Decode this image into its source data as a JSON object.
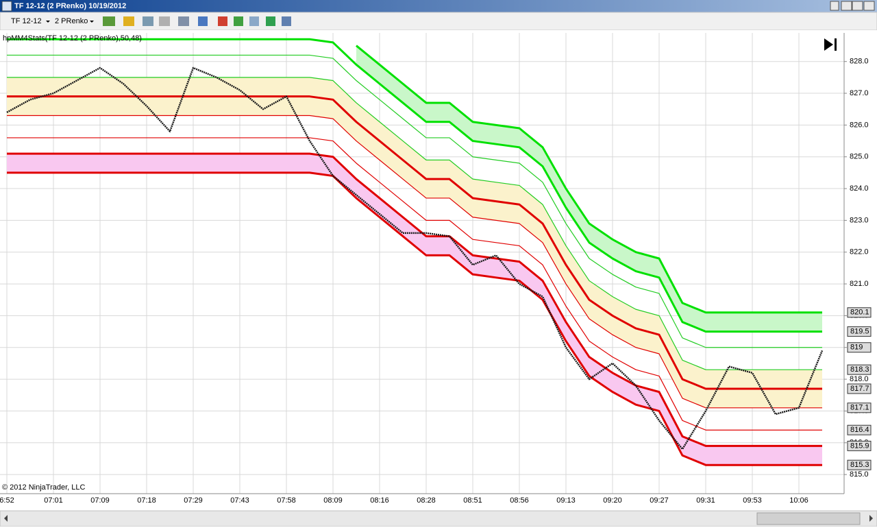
{
  "window": {
    "title": "TF 12-12 (2 PRenko)  10/19/2012"
  },
  "toolbar": {
    "instrument": "TF 12-12",
    "bar_type": "2 PRenko"
  },
  "chart_data": {
    "type": "line",
    "title": "hpMM4Stats(TF 12-12 (2 PRenko),50,48)",
    "annotation": "© 2012 NinjaTrader, LLC",
    "categories": [
      "6:52",
      null,
      "07:01",
      null,
      "07:09",
      null,
      "07:18",
      null,
      "07:29",
      null,
      "07:43",
      null,
      "07:58",
      null,
      "08:09",
      null,
      "08:16",
      null,
      "08:28",
      null,
      "08:51",
      null,
      "08:56",
      null,
      "09:13",
      null,
      "09:20",
      null,
      "09:27",
      null,
      "09:31",
      null,
      "09:53",
      null,
      "10:06",
      null
    ],
    "ylim": [
      814.7,
      828.9
    ],
    "yticks": [
      {
        "value": 815,
        "label": "815.0"
      },
      {
        "value": 816,
        "label": "816.0"
      },
      {
        "value": 817,
        "label": "817.0"
      },
      {
        "value": 818,
        "label": "818.0"
      },
      {
        "value": 819,
        "label": "819.0"
      },
      {
        "value": 820,
        "label": "820.0"
      },
      {
        "value": 821,
        "label": "821.0"
      },
      {
        "value": 822,
        "label": "822.0"
      },
      {
        "value": 823,
        "label": "823.0"
      },
      {
        "value": 824,
        "label": "824.0"
      },
      {
        "value": 825,
        "label": "825.0"
      },
      {
        "value": 826,
        "label": "826.0"
      },
      {
        "value": 827,
        "label": "827.0"
      },
      {
        "value": 828,
        "label": "828.0"
      }
    ],
    "grid": true,
    "series": [
      {
        "color": "#00e000",
        "thick": true,
        "fill": "#c9f7c9",
        "values": [
          null,
          null,
          null,
          null,
          null,
          null,
          null,
          null,
          null,
          null,
          null,
          null,
          null,
          null,
          null,
          828.5,
          827.9,
          827.3,
          826.7,
          826.7,
          826.1,
          826.0,
          825.9,
          825.3,
          824.0,
          822.9,
          822.4,
          822.0,
          821.8,
          820.4,
          820.1,
          820.1,
          820.1,
          820.1,
          820.1,
          820.1
        ]
      },
      {
        "color": "#00e000",
        "thick": true,
        "values": [
          828.7,
          828.7,
          828.7,
          828.7,
          828.7,
          828.7,
          828.7,
          828.7,
          828.7,
          828.7,
          828.7,
          828.7,
          828.7,
          828.7,
          828.6,
          827.9,
          827.3,
          826.7,
          826.1,
          826.1,
          825.5,
          825.4,
          825.3,
          824.7,
          823.4,
          822.3,
          821.8,
          821.4,
          821.2,
          819.8,
          819.5,
          819.5,
          819.5,
          819.5,
          819.5,
          819.5
        ]
      },
      {
        "color": "#22cc22",
        "thick": false,
        "values": [
          828.2,
          828.2,
          828.2,
          828.2,
          828.2,
          828.2,
          828.2,
          828.2,
          828.2,
          828.2,
          828.2,
          828.2,
          828.2,
          828.2,
          828.1,
          827.4,
          826.8,
          826.2,
          825.6,
          825.6,
          825.0,
          824.9,
          824.8,
          824.2,
          822.9,
          821.8,
          821.3,
          820.9,
          820.7,
          819.3,
          819.0,
          819.0,
          819.0,
          819.0,
          819.0,
          819.0
        ]
      },
      {
        "color": "#22cc22",
        "thick": false,
        "fill": "#fbf2cc",
        "values": [
          827.5,
          827.5,
          827.5,
          827.5,
          827.5,
          827.5,
          827.5,
          827.5,
          827.5,
          827.5,
          827.5,
          827.5,
          827.5,
          827.5,
          827.4,
          826.7,
          826.1,
          825.5,
          824.9,
          824.9,
          824.3,
          824.2,
          824.1,
          823.5,
          822.2,
          821.1,
          820.6,
          820.2,
          820.0,
          818.6,
          818.3,
          818.3,
          818.3,
          818.3,
          818.3,
          818.3
        ]
      },
      {
        "color": "#e00000",
        "thick": true,
        "fill": "#fbf2cc",
        "values": [
          826.9,
          826.9,
          826.9,
          826.9,
          826.9,
          826.9,
          826.9,
          826.9,
          826.9,
          826.9,
          826.9,
          826.9,
          826.9,
          826.9,
          826.8,
          826.1,
          825.5,
          824.9,
          824.3,
          824.3,
          823.7,
          823.6,
          823.5,
          822.9,
          821.6,
          820.5,
          820.0,
          819.6,
          819.4,
          818.0,
          817.7,
          817.7,
          817.7,
          817.7,
          817.7,
          817.7
        ]
      },
      {
        "color": "#e00000",
        "thick": false,
        "values": [
          826.3,
          826.3,
          826.3,
          826.3,
          826.3,
          826.3,
          826.3,
          826.3,
          826.3,
          826.3,
          826.3,
          826.3,
          826.3,
          826.3,
          826.2,
          825.5,
          824.9,
          824.3,
          823.7,
          823.7,
          823.1,
          823.0,
          822.9,
          822.3,
          821.0,
          819.9,
          819.4,
          819.0,
          818.8,
          817.4,
          817.1,
          817.1,
          817.1,
          817.1,
          817.1,
          817.1
        ]
      },
      {
        "color": "#e00000",
        "thick": false,
        "values": [
          825.6,
          825.6,
          825.6,
          825.6,
          825.6,
          825.6,
          825.6,
          825.6,
          825.6,
          825.6,
          825.6,
          825.6,
          825.6,
          825.6,
          825.5,
          824.8,
          824.2,
          823.6,
          823.0,
          823.0,
          822.4,
          822.3,
          822.2,
          821.6,
          820.3,
          819.2,
          818.7,
          818.3,
          818.1,
          816.7,
          816.4,
          816.4,
          816.4,
          816.4,
          816.4,
          816.4
        ]
      },
      {
        "color": "#e00000",
        "thick": true,
        "fill": "#f9c8f0",
        "values": [
          825.1,
          825.1,
          825.1,
          825.1,
          825.1,
          825.1,
          825.1,
          825.1,
          825.1,
          825.1,
          825.1,
          825.1,
          825.1,
          825.1,
          825.0,
          824.3,
          823.7,
          823.1,
          822.5,
          822.5,
          821.9,
          821.8,
          821.7,
          821.1,
          819.8,
          818.7,
          818.2,
          817.8,
          817.6,
          816.2,
          815.9,
          815.9,
          815.9,
          815.9,
          815.9,
          815.9
        ]
      },
      {
        "color": "#e00000",
        "thick": true,
        "values": [
          824.5,
          824.5,
          824.5,
          824.5,
          824.5,
          824.5,
          824.5,
          824.5,
          824.5,
          824.5,
          824.5,
          824.5,
          824.5,
          824.5,
          824.4,
          823.7,
          823.1,
          822.5,
          821.9,
          821.9,
          821.3,
          821.2,
          821.1,
          820.5,
          819.2,
          818.1,
          817.6,
          817.2,
          817.0,
          815.6,
          815.3,
          815.3,
          815.3,
          815.3,
          815.3,
          815.3
        ]
      },
      {
        "color": "#1a1a1a",
        "thick": false,
        "price": true,
        "values": [
          826.4,
          826.8,
          827.0,
          827.4,
          827.8,
          827.3,
          826.6,
          825.8,
          827.8,
          827.5,
          827.1,
          826.5,
          826.9,
          825.5,
          824.4,
          823.8,
          823.2,
          822.6,
          822.6,
          822.5,
          821.6,
          821.9,
          821.0,
          820.6,
          819.0,
          818.0,
          818.5,
          817.8,
          816.7,
          815.8,
          817.0,
          818.4,
          818.2,
          816.9,
          817.1,
          818.9
        ]
      }
    ],
    "price_markers": [
      820.1,
      819.5,
      819.0,
      818.3,
      817.7,
      817.1,
      816.4,
      815.9,
      815.3
    ]
  }
}
